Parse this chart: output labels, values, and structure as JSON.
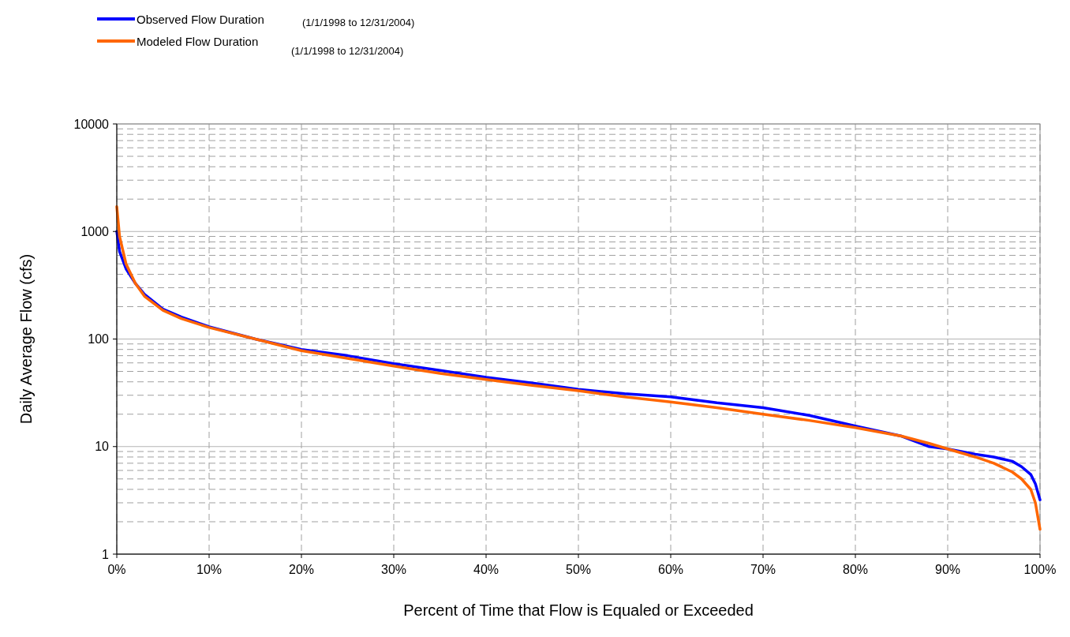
{
  "chart_data": {
    "type": "line",
    "xlabel": "Percent of Time that Flow is Equaled or Exceeded",
    "ylabel": "Daily Average Flow (cfs)",
    "x": [
      0,
      0.3,
      1,
      2,
      3,
      5,
      7,
      10,
      15,
      20,
      25,
      30,
      35,
      40,
      45,
      50,
      55,
      60,
      65,
      70,
      75,
      80,
      85,
      88,
      90,
      93,
      95,
      97,
      98,
      99,
      99.5,
      100
    ],
    "series": [
      {
        "name": "Observed Flow Duration",
        "color": "#0000ff",
        "values": [
          1000,
          650,
          450,
          330,
          260,
          190,
          160,
          130,
          100,
          80,
          70,
          59,
          51,
          44,
          39,
          34,
          31,
          29,
          25.5,
          23,
          19.5,
          15.5,
          12.5,
          10,
          9.5,
          8.5,
          8,
          7.3,
          6.5,
          5.5,
          4.5,
          3.2
        ]
      },
      {
        "name": "Modeled Flow Duration",
        "color": "#ff6600",
        "values": [
          1700,
          900,
          500,
          330,
          250,
          185,
          155,
          128,
          100,
          78,
          66,
          56,
          48,
          42,
          37,
          33,
          29,
          26,
          23,
          20,
          17.5,
          15,
          12.5,
          10.7,
          9.5,
          8,
          7,
          5.8,
          5,
          4,
          3,
          1.7
        ]
      }
    ],
    "annotations": [
      "(1/1/1998 to 12/31/2004)",
      "(1/1/1998 to 12/31/2004)"
    ],
    "log": "y",
    "ylim": [
      1,
      10000
    ],
    "yticks": [
      1,
      10,
      100,
      1000,
      10000
    ],
    "xlim": [
      0,
      100
    ],
    "xticks": [
      {
        "value": 0,
        "label": "0%"
      },
      {
        "value": 10,
        "label": "10%"
      },
      {
        "value": 20,
        "label": "20%"
      },
      {
        "value": 30,
        "label": "30%"
      },
      {
        "value": 40,
        "label": "40%"
      },
      {
        "value": 50,
        "label": "50%"
      },
      {
        "value": 60,
        "label": "60%"
      },
      {
        "value": 70,
        "label": "70%"
      },
      {
        "value": 80,
        "label": "80%"
      },
      {
        "value": 90,
        "label": "90%"
      },
      {
        "value": 100,
        "label": "100%"
      }
    ],
    "grid": true,
    "legend": "top left",
    "line_style": "solid"
  }
}
